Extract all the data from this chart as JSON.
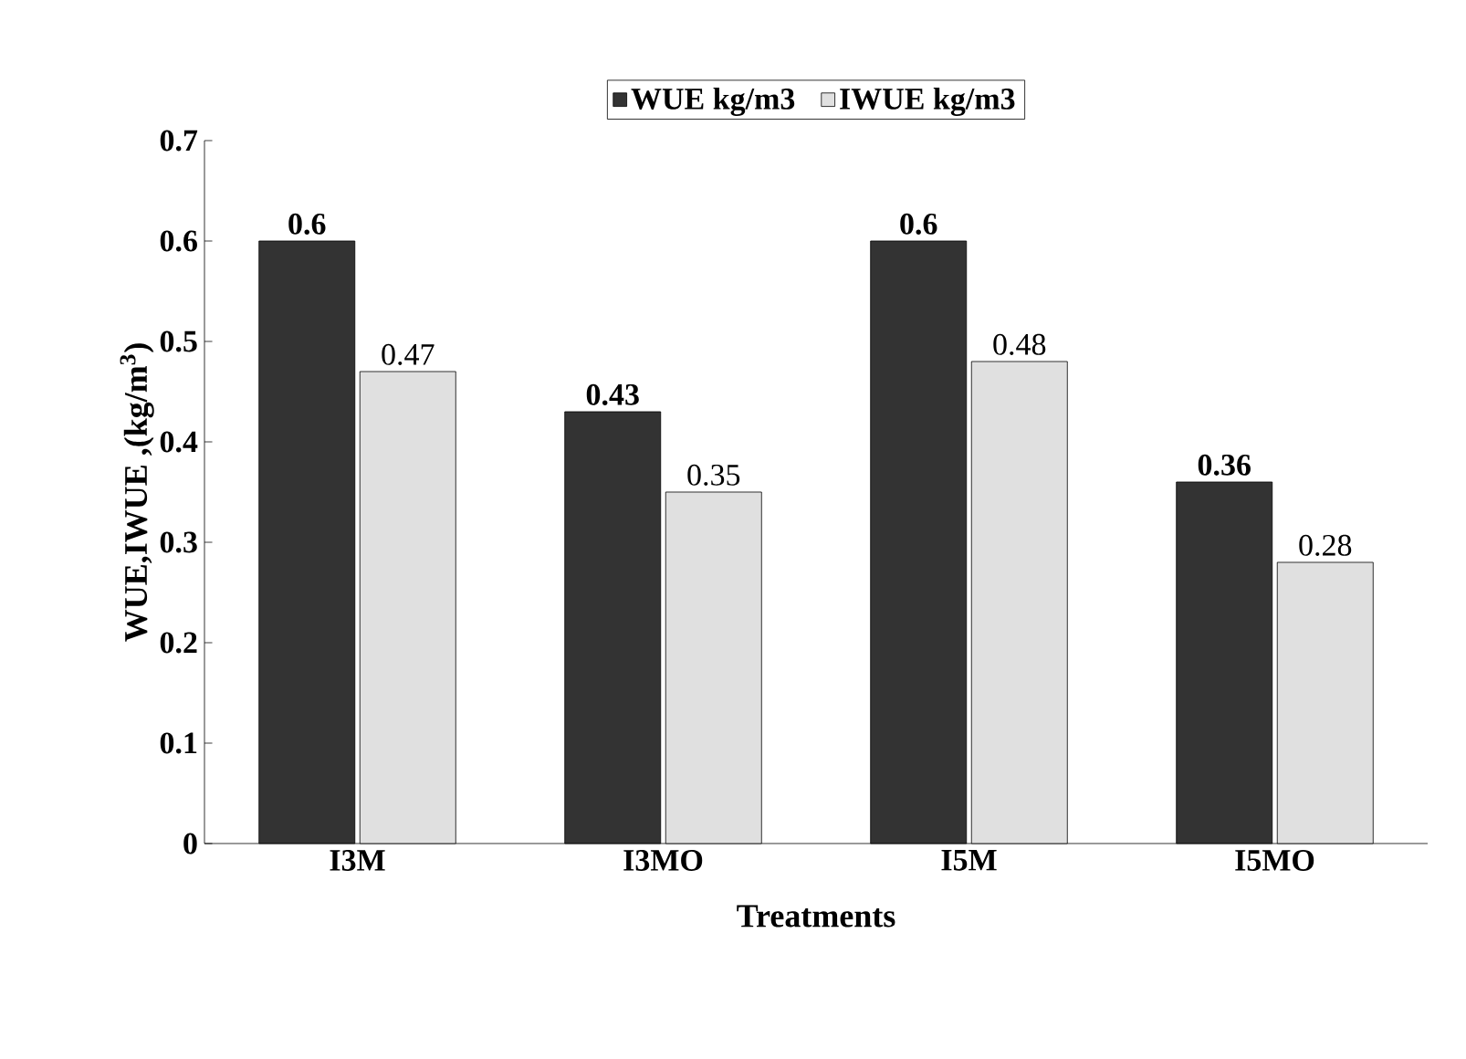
{
  "chart_data": {
    "type": "bar",
    "categories": [
      "I3M",
      "I3MO",
      "I5M",
      "I5MO"
    ],
    "series": [
      {
        "name": "WUE kg/m3",
        "color": "#333333",
        "values": [
          0.6,
          0.43,
          0.6,
          0.36
        ]
      },
      {
        "name": "IWUE kg/m3",
        "color": "#e0e0e0",
        "values": [
          0.47,
          0.35,
          0.48,
          0.28
        ]
      }
    ],
    "xlabel": "Treatments",
    "ylabel": "WUE,IWUE ,(kg/m$^{3}$)",
    "ylim": [
      0,
      0.7
    ],
    "yticks": [
      0,
      0.1,
      0.2,
      0.3,
      0.4,
      0.5,
      0.6,
      0.7
    ],
    "data_labels": true,
    "legend": "top"
  }
}
